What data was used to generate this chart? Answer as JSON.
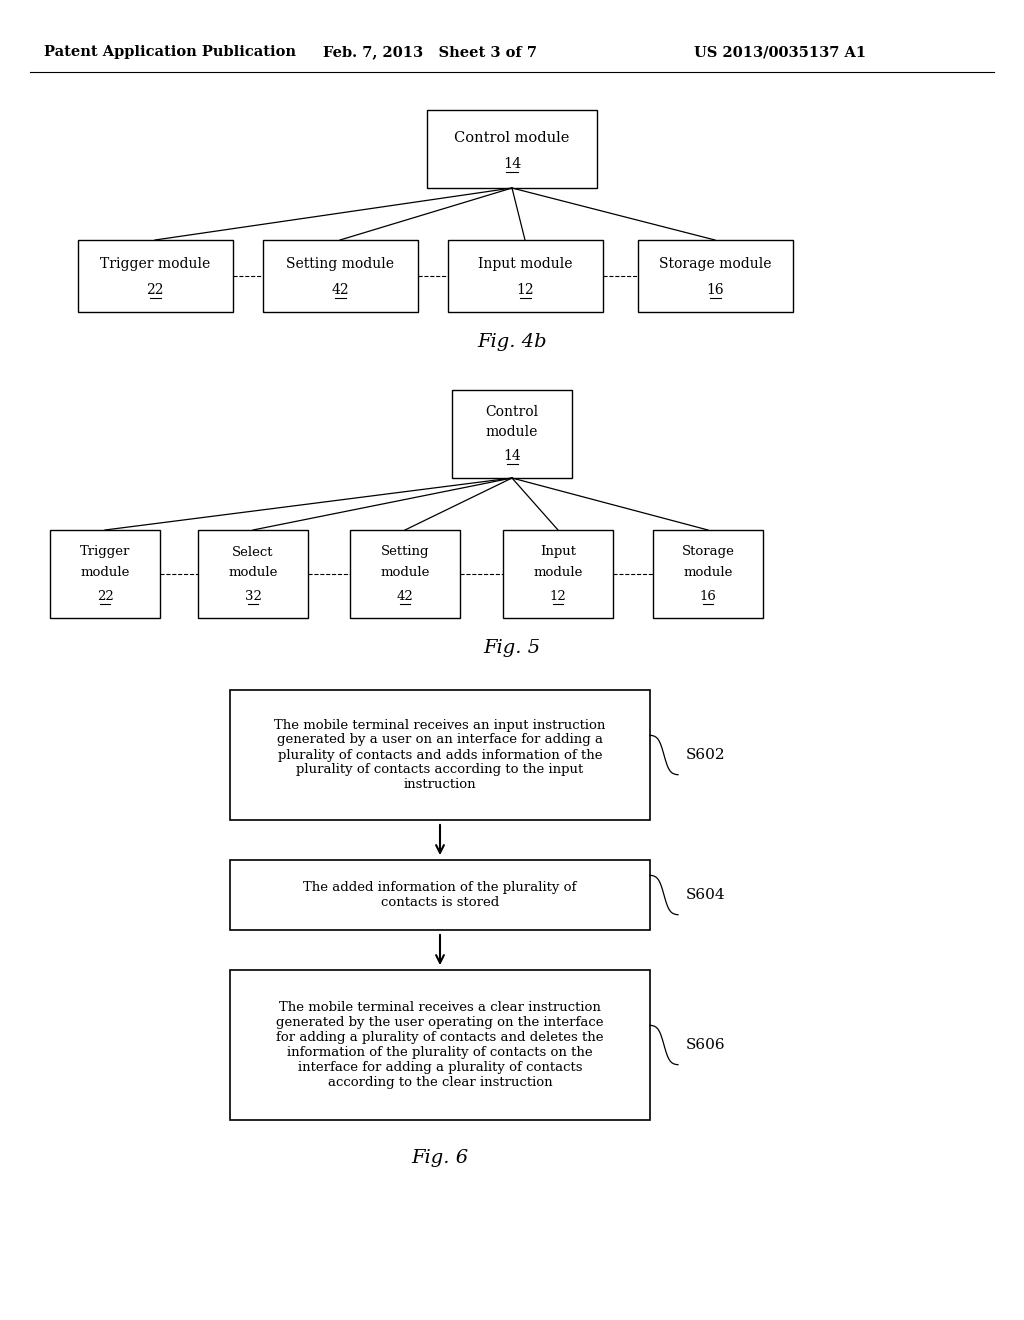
{
  "header_left": "Patent Application Publication",
  "header_mid": "Feb. 7, 2013   Sheet 3 of 7",
  "header_right": "US 2013/0035137 A1",
  "fig4b_title": "Fig. 4b",
  "fig5_title": "Fig. 5",
  "fig6_title": "Fig. 6",
  "bg_color": "#ffffff",
  "text_color": "#000000",
  "font_size_header": 10.5,
  "font_size_box": 10,
  "font_size_fig_label": 13,
  "font_size_step": 9.5
}
